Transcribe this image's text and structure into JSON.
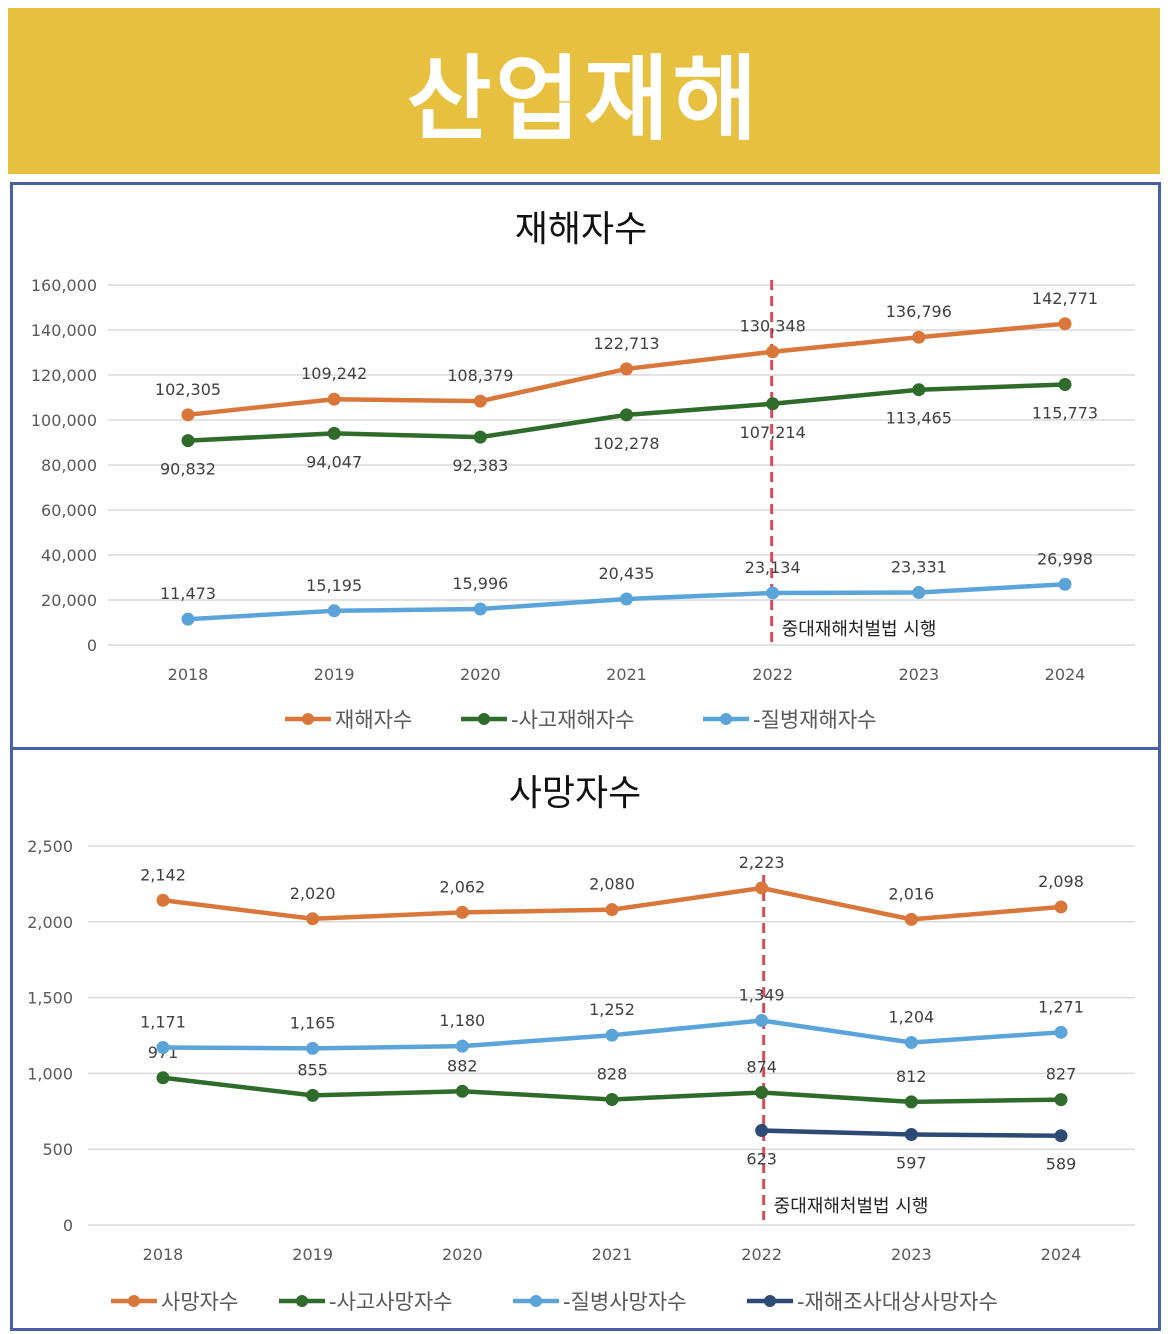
{
  "banner": {
    "title": "산업재해"
  },
  "colors": {
    "orange": "#D9773A",
    "green": "#2F6B2A",
    "lightblue": "#5BA4DA",
    "navy": "#2C4A73",
    "marker": "#D94A5A",
    "banner": "#E8C040",
    "frame": "#4A5FAA"
  },
  "chart_data": [
    {
      "type": "line",
      "title": "재해자수",
      "categories": [
        "2018",
        "2019",
        "2020",
        "2021",
        "2022",
        "2023",
        "2024"
      ],
      "ylim": [
        0,
        160000
      ],
      "yticks": [
        "0",
        "20,000",
        "40,000",
        "60,000",
        "80,000",
        "100,000",
        "120,000",
        "140,000",
        "160,000"
      ],
      "grid": true,
      "legend": "bottom",
      "annotation": {
        "category": "2022",
        "text": "중대재해처벌법 시행"
      },
      "series": [
        {
          "name": "재해자수",
          "color": "orange",
          "values": [
            102305,
            109242,
            108379,
            122713,
            130348,
            136796,
            142771
          ],
          "labels": [
            "102,305",
            "109,242",
            "108,379",
            "122,713",
            "130,348",
            "136,796",
            "142,771"
          ],
          "label_pos": "above"
        },
        {
          "name": "-사고재해자수",
          "color": "green",
          "values": [
            90832,
            94047,
            92383,
            102278,
            107214,
            113465,
            115773
          ],
          "labels": [
            "90,832",
            "94,047",
            "92,383",
            "102,278",
            "107,214",
            "113,465",
            "115,773"
          ],
          "label_pos": "below"
        },
        {
          "name": "-질병재해자수",
          "color": "lightblue",
          "values": [
            11473,
            15195,
            15996,
            20435,
            23134,
            23331,
            26998
          ],
          "labels": [
            "11,473",
            "15,195",
            "15,996",
            "20,435",
            "23,134",
            "23,331",
            "26,998"
          ],
          "label_pos": "above"
        }
      ]
    },
    {
      "type": "line",
      "title": "사망자수",
      "categories": [
        "2018",
        "2019",
        "2020",
        "2021",
        "2022",
        "2023",
        "2024"
      ],
      "ylim": [
        0,
        2500
      ],
      "yticks": [
        "0",
        "500",
        "1,000",
        "1,500",
        "2,000",
        "2,500"
      ],
      "grid": true,
      "legend": "bottom",
      "annotation": {
        "category": "2022",
        "text": "중대재해처벌법 시행"
      },
      "series": [
        {
          "name": "사망자수",
          "color": "orange",
          "values": [
            2142,
            2020,
            2062,
            2080,
            2223,
            2016,
            2098
          ],
          "labels": [
            "2,142",
            "2,020",
            "2,062",
            "2,080",
            "2,223",
            "2,016",
            "2,098"
          ],
          "label_pos": "above"
        },
        {
          "name": "-사고사망자수",
          "color": "green",
          "values": [
            971,
            855,
            882,
            828,
            874,
            812,
            827
          ],
          "labels": [
            "971",
            "855",
            "882",
            "828",
            "874",
            "812",
            "827"
          ],
          "label_pos": "above"
        },
        {
          "name": "-질병사망자수",
          "color": "lightblue",
          "values": [
            1171,
            1165,
            1180,
            1252,
            1349,
            1204,
            1271
          ],
          "labels": [
            "1,171",
            "1,165",
            "1,180",
            "1,252",
            "1,349",
            "1,204",
            "1,271"
          ],
          "label_pos": "above"
        },
        {
          "name": "-재해조사대상사망자수",
          "color": "navy",
          "values": [
            null,
            null,
            null,
            null,
            623,
            597,
            589
          ],
          "labels": [
            "",
            "",
            "",
            "",
            "623",
            "597",
            "589"
          ],
          "label_pos": "below"
        }
      ]
    }
  ]
}
